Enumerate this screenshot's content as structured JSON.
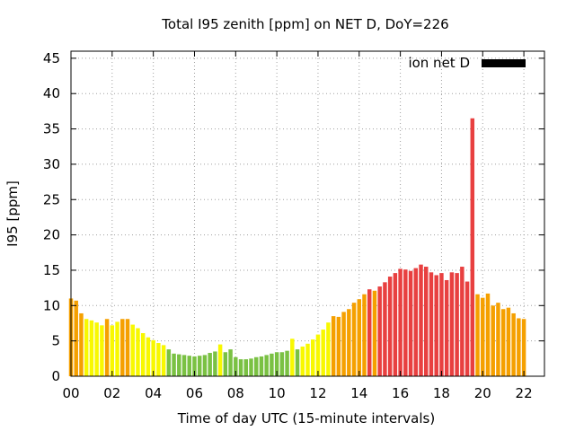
{
  "chart_data": {
    "type": "bar",
    "title": "Total I95 zenith [ppm] on NET D, DoY=226",
    "xlabel": "Time of day UTC (15-minute intervals)",
    "ylabel": "I95 [ppm]",
    "xlim": [
      0,
      23
    ],
    "ylim": [
      0,
      46
    ],
    "x_ticks": [
      "00",
      "02",
      "04",
      "06",
      "08",
      "10",
      "12",
      "14",
      "16",
      "18",
      "20",
      "22"
    ],
    "y_ticks": [
      "0",
      "5",
      "10",
      "15",
      "20",
      "25",
      "30",
      "35",
      "40",
      "45"
    ],
    "grid": true,
    "legend": {
      "placement": "top-right",
      "entries": [
        {
          "label": "ion net D",
          "color": "#000000"
        }
      ]
    },
    "interval_hours": 0.25,
    "colors": {
      "red": "#e84040",
      "orange": "#f5a000",
      "yellow": "#f8f800",
      "green": "#7ac143"
    },
    "series": [
      {
        "values": [
          11.0,
          10.7,
          8.9,
          8.1,
          7.9,
          7.6,
          7.2,
          8.1,
          7.2,
          7.7,
          8.1,
          8.1,
          7.3,
          6.8,
          6.1,
          5.5,
          5.1,
          4.7,
          4.4,
          3.8,
          3.2,
          3.1,
          3.0,
          2.9,
          2.8,
          2.9,
          3.0,
          3.3,
          3.5,
          4.5,
          3.4,
          3.8,
          2.7,
          2.4,
          2.4,
          2.5,
          2.7,
          2.8,
          3.0,
          3.2,
          3.4,
          3.4,
          3.6,
          5.3,
          3.8,
          4.2,
          4.6,
          5.2,
          5.9,
          6.6,
          7.6,
          8.5,
          8.4,
          9.1,
          9.5,
          10.4,
          10.9,
          11.6,
          12.3,
          12.1,
          12.7,
          13.3,
          14.1,
          14.6,
          15.2,
          15.1,
          14.9,
          15.3,
          15.8,
          15.5,
          14.7,
          14.3,
          14.6,
          13.6,
          14.7,
          14.6,
          15.5,
          13.4,
          36.5,
          11.6,
          11.1,
          11.7,
          10.0,
          10.4,
          9.5,
          9.7,
          8.9,
          8.2,
          8.1
        ],
        "colors": [
          "orange",
          "orange",
          "orange",
          "yellow",
          "yellow",
          "yellow",
          "yellow",
          "orange",
          "yellow",
          "yellow",
          "orange",
          "orange",
          "yellow",
          "yellow",
          "yellow",
          "yellow",
          "yellow",
          "yellow",
          "yellow",
          "green",
          "green",
          "green",
          "green",
          "green",
          "green",
          "green",
          "green",
          "green",
          "green",
          "yellow",
          "green",
          "green",
          "green",
          "green",
          "green",
          "green",
          "green",
          "green",
          "green",
          "green",
          "green",
          "green",
          "green",
          "yellow",
          "green",
          "yellow",
          "yellow",
          "yellow",
          "yellow",
          "yellow",
          "yellow",
          "orange",
          "orange",
          "orange",
          "orange",
          "orange",
          "orange",
          "orange",
          "red",
          "orange",
          "red",
          "red",
          "red",
          "red",
          "red",
          "red",
          "red",
          "red",
          "red",
          "red",
          "red",
          "red",
          "red",
          "red",
          "red",
          "red",
          "red",
          "red",
          "red",
          "orange",
          "orange",
          "orange",
          "orange",
          "orange",
          "orange",
          "orange",
          "orange",
          "orange",
          "orange"
        ]
      }
    ]
  }
}
